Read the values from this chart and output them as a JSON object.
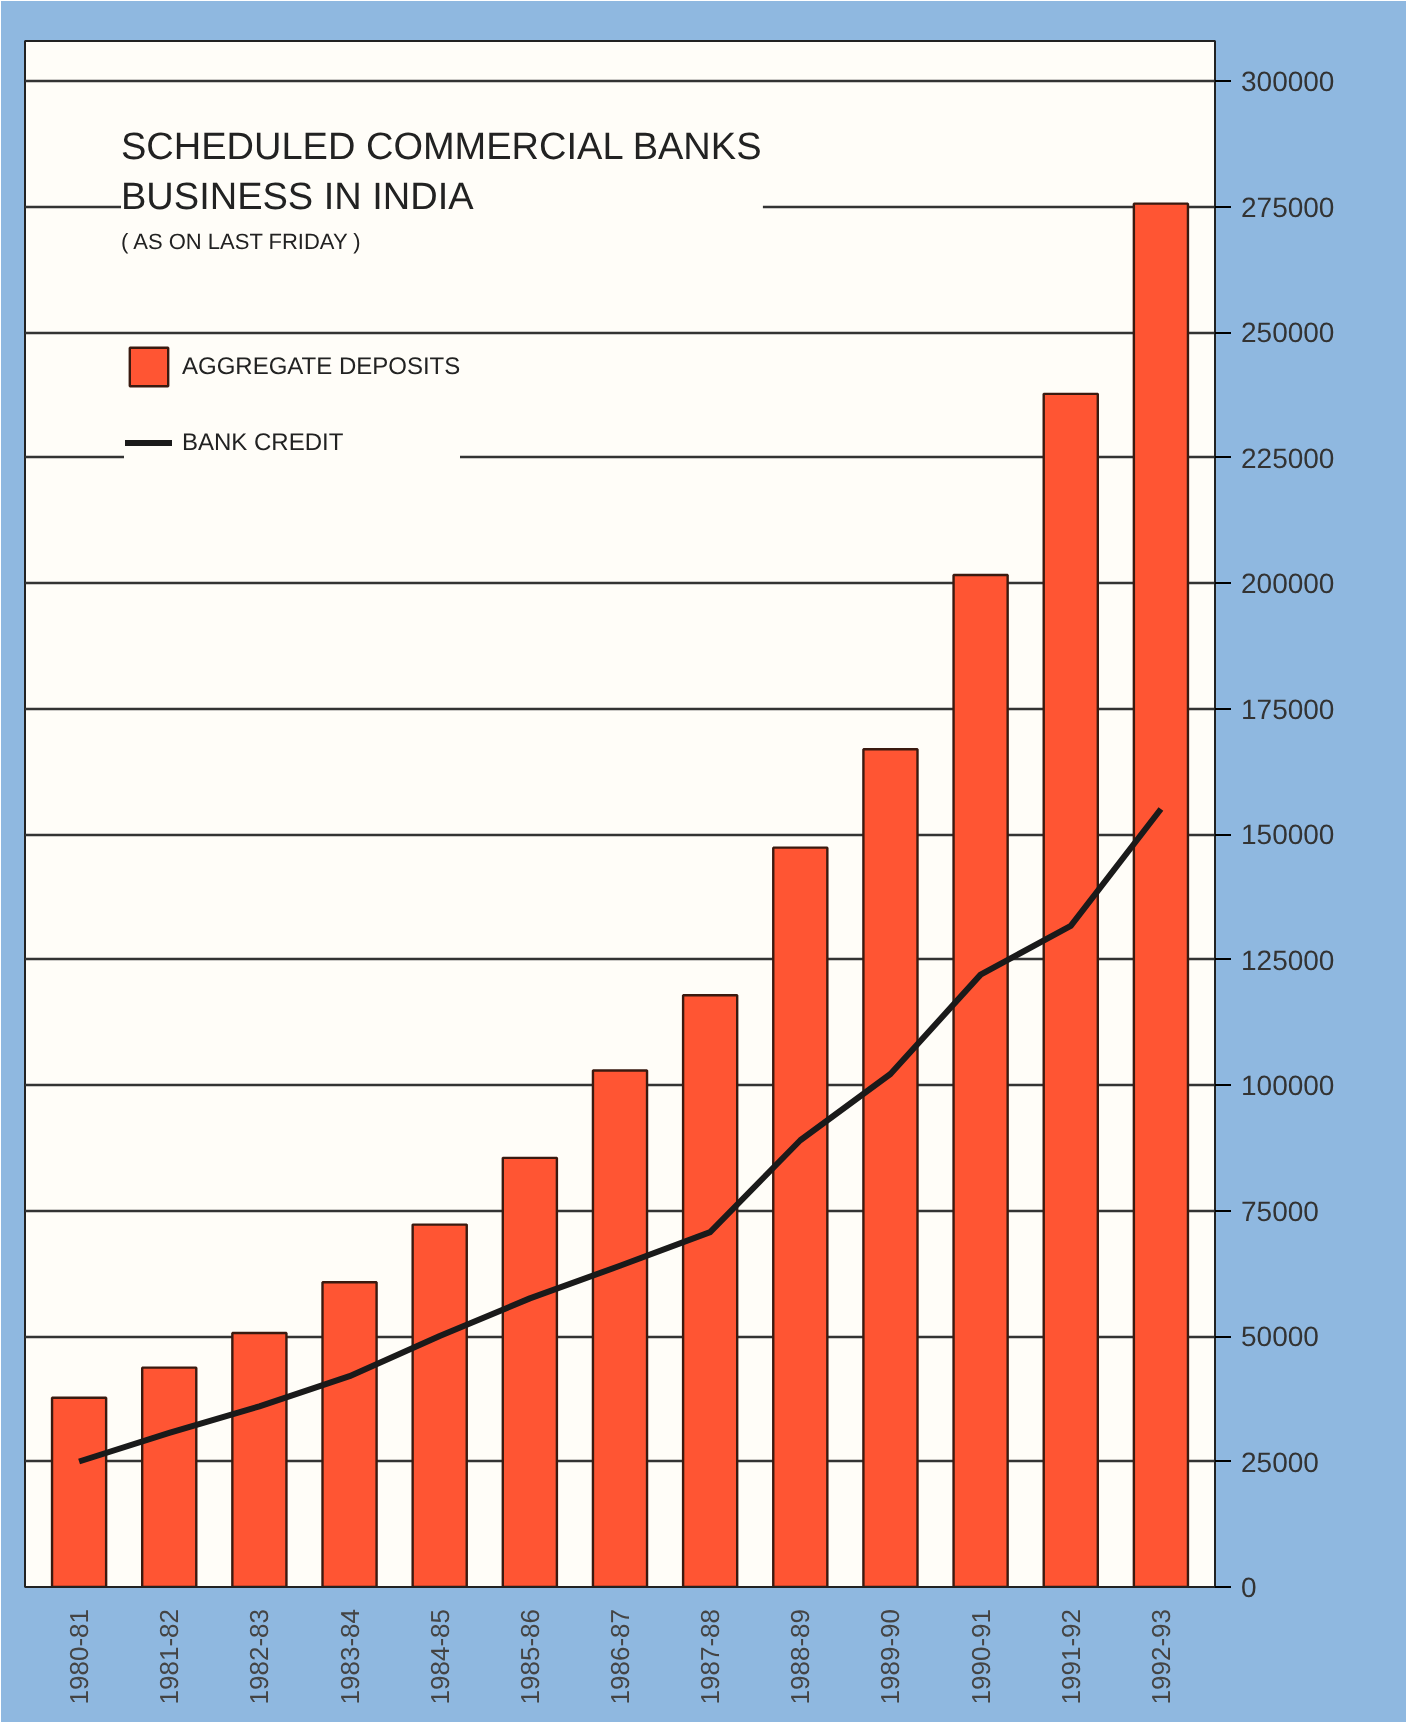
{
  "chart_data": {
    "type": "bar",
    "title": "SCHEDULED COMMERCIAL BANKS\nBUSINESS IN INDIA",
    "subtitle": "( AS ON LAST FRIDAY )",
    "categories": [
      "1980-81",
      "1981-82",
      "1982-83",
      "1983-84",
      "1984-85",
      "1985-86",
      "1986-87",
      "1987-88",
      "1988-89",
      "1989-90",
      "1990-91",
      "1991-92",
      "1992-93"
    ],
    "series": [
      {
        "name": "AGGREGATE DEPOSITS",
        "color": "#ff5533",
        "values": [
          37700,
          43700,
          50600,
          60700,
          72200,
          85500,
          102900,
          117900,
          147300,
          166900,
          201600,
          237700,
          275600
        ]
      },
      {
        "name": "BANK CREDIT",
        "type": "line",
        "color": "#1a1a1a",
        "values": [
          25000,
          30700,
          36000,
          42000,
          50000,
          57500,
          64000,
          70700,
          89000,
          102200,
          122000,
          131700,
          155000
        ]
      }
    ],
    "ylim": [
      0,
      308000
    ],
    "yticks": [
      0,
      25000,
      50000,
      75000,
      100000,
      125000,
      150000,
      175000,
      200000,
      225000,
      250000,
      275000,
      300000
    ],
    "grid": "y",
    "legend": "top left",
    "line_style": "solid",
    "marker": "none"
  }
}
